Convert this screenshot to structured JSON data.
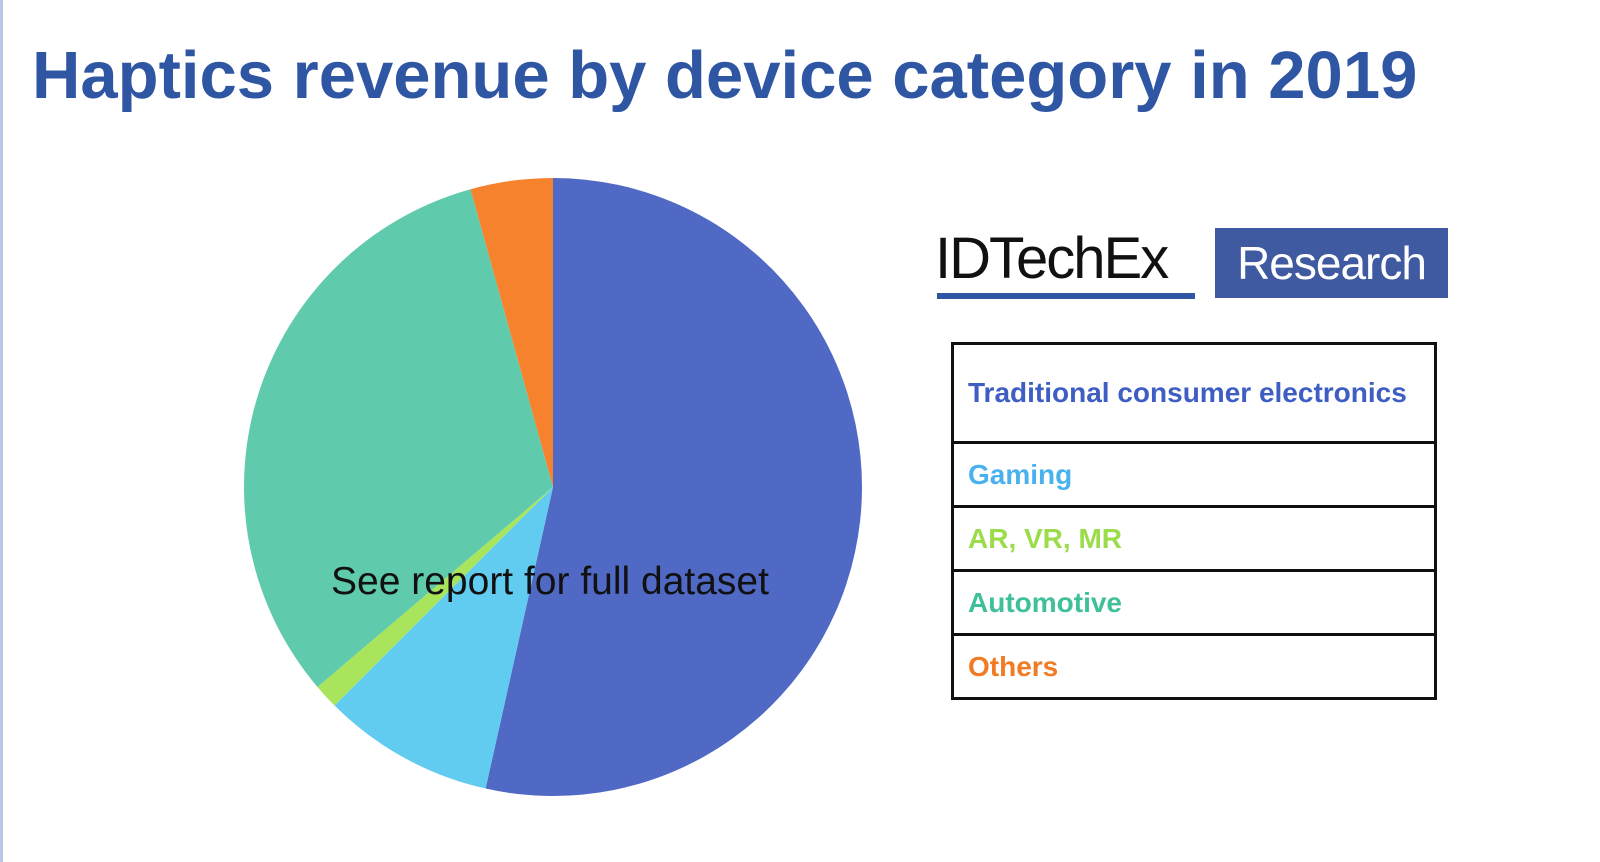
{
  "title": "Haptics revenue by device category in 2019",
  "brand": {
    "name": "IDTechEx",
    "badge": "Research"
  },
  "chart_data": {
    "type": "pie",
    "title": "Haptics revenue by device category in 2019",
    "annotation": "See report for full dataset",
    "start_angle_deg": 0,
    "direction": "clockwise",
    "slices": [
      {
        "label": "Traditional consumer electronics",
        "value": 53.5,
        "color": "#4f69c4"
      },
      {
        "label": "Gaming",
        "value": 9.0,
        "color": "#62ccf0"
      },
      {
        "label": "AR, VR, MR",
        "value": 1.3,
        "color": "#a9e45d"
      },
      {
        "label": "Automotive",
        "value": 31.9,
        "color": "#5fcbac"
      },
      {
        "label": "Others",
        "value": 4.3,
        "color": "#f7822e"
      }
    ],
    "legend": {
      "placement": "right",
      "items": [
        {
          "label": "Traditional consumer electronics",
          "color": "#3e5ec3"
        },
        {
          "label": "Gaming",
          "color": "#49b2ee"
        },
        {
          "label": "AR, VR, MR",
          "color": "#9bdc4a"
        },
        {
          "label": "Automotive",
          "color": "#3fbf9a"
        },
        {
          "label": "Others",
          "color": "#f27a22"
        }
      ]
    }
  }
}
